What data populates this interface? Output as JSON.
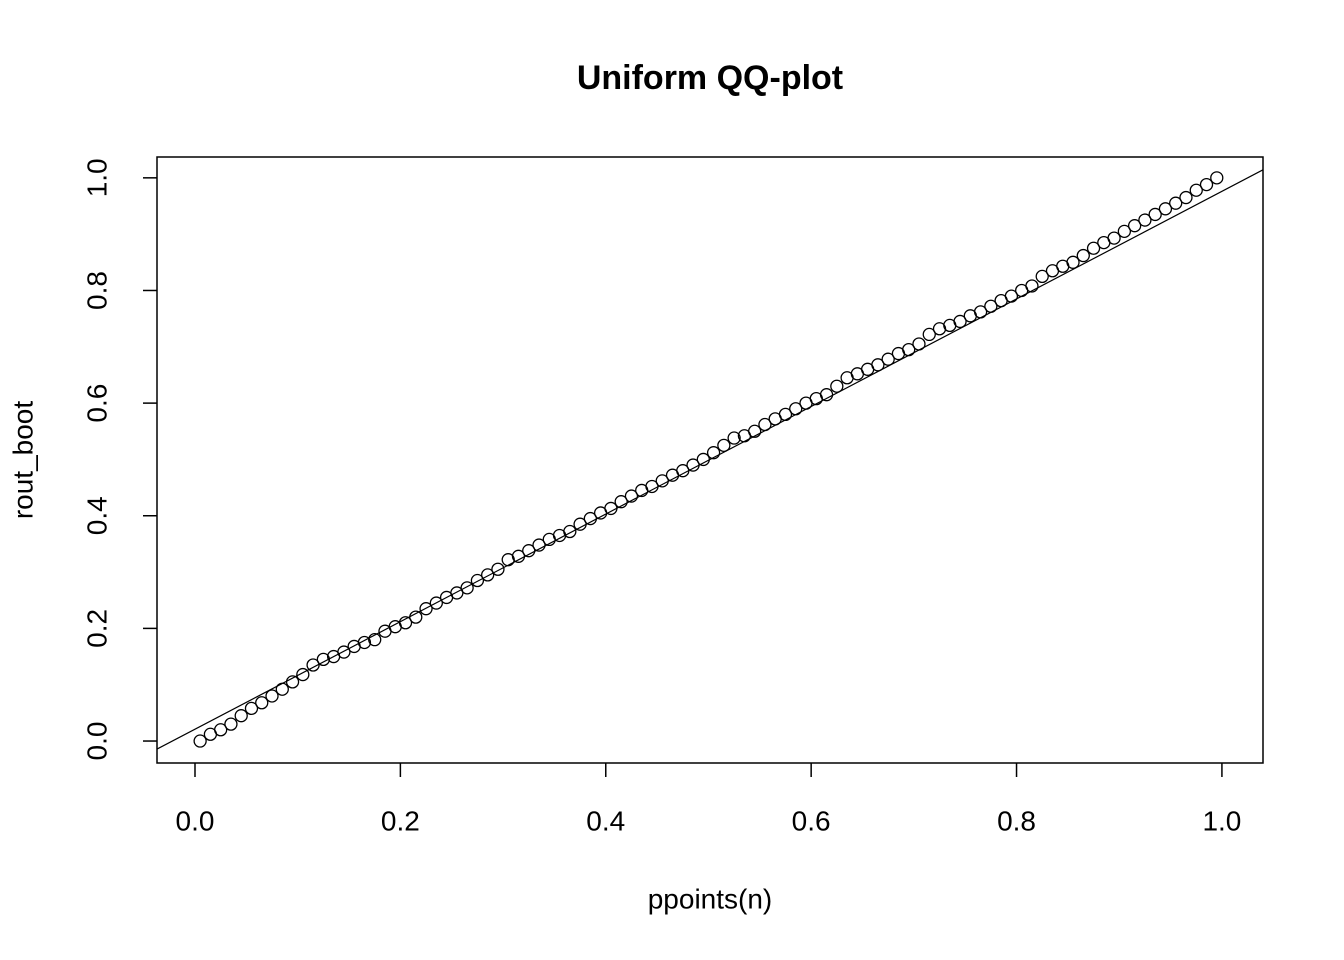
{
  "chart_data": {
    "type": "scatter",
    "title": "Uniform QQ-plot",
    "x_label": "ppoints(n)",
    "y_label": "rout_boot",
    "x": [
      0.005,
      0.015,
      0.025,
      0.035,
      0.045,
      0.055,
      0.065,
      0.075,
      0.085,
      0.095,
      0.105,
      0.115,
      0.125,
      0.135,
      0.145,
      0.155,
      0.165,
      0.175,
      0.185,
      0.195,
      0.205,
      0.215,
      0.225,
      0.235,
      0.245,
      0.255,
      0.265,
      0.275,
      0.285,
      0.295,
      0.305,
      0.315,
      0.325,
      0.335,
      0.345,
      0.355,
      0.365,
      0.375,
      0.385,
      0.395,
      0.405,
      0.415,
      0.425,
      0.435,
      0.445,
      0.455,
      0.465,
      0.475,
      0.485,
      0.495,
      0.505,
      0.515,
      0.525,
      0.535,
      0.545,
      0.555,
      0.565,
      0.575,
      0.585,
      0.595,
      0.605,
      0.615,
      0.625,
      0.635,
      0.645,
      0.655,
      0.665,
      0.675,
      0.685,
      0.695,
      0.705,
      0.715,
      0.725,
      0.735,
      0.745,
      0.755,
      0.765,
      0.775,
      0.785,
      0.795,
      0.805,
      0.815,
      0.825,
      0.835,
      0.845,
      0.855,
      0.865,
      0.875,
      0.885,
      0.895,
      0.905,
      0.915,
      0.925,
      0.935,
      0.945,
      0.955,
      0.965,
      0.975,
      0.985,
      0.995
    ],
    "values": [
      0.0,
      0.012,
      0.02,
      0.03,
      0.045,
      0.058,
      0.068,
      0.08,
      0.092,
      0.105,
      0.118,
      0.135,
      0.145,
      0.15,
      0.158,
      0.168,
      0.175,
      0.18,
      0.195,
      0.203,
      0.21,
      0.22,
      0.235,
      0.245,
      0.255,
      0.263,
      0.272,
      0.285,
      0.295,
      0.305,
      0.322,
      0.328,
      0.338,
      0.348,
      0.358,
      0.365,
      0.372,
      0.385,
      0.395,
      0.405,
      0.413,
      0.425,
      0.435,
      0.445,
      0.452,
      0.462,
      0.472,
      0.48,
      0.49,
      0.5,
      0.512,
      0.525,
      0.538,
      0.542,
      0.55,
      0.562,
      0.572,
      0.58,
      0.59,
      0.6,
      0.608,
      0.615,
      0.63,
      0.645,
      0.652,
      0.66,
      0.668,
      0.678,
      0.688,
      0.695,
      0.705,
      0.722,
      0.732,
      0.738,
      0.745,
      0.755,
      0.762,
      0.772,
      0.782,
      0.79,
      0.8,
      0.808,
      0.825,
      0.835,
      0.843,
      0.85,
      0.862,
      0.875,
      0.885,
      0.893,
      0.905,
      0.915,
      0.925,
      0.935,
      0.945,
      0.955,
      0.965,
      0.978,
      0.988,
      1.0
    ],
    "color": "#000000",
    "abline": {
      "a": 0.021,
      "b": 0.955
    },
    "xlim": [
      -0.037,
      1.04
    ],
    "ylim": [
      -0.039,
      1.037
    ],
    "xticks": [
      {
        "value": 0,
        "label": "0.0"
      },
      0.2,
      0.4,
      0.6,
      0.8,
      {
        "value": 1,
        "label": "1.0"
      }
    ],
    "yticks": [
      {
        "value": 0,
        "label": "0.0"
      },
      0.2,
      0.4,
      0.6,
      0.8,
      {
        "value": 1,
        "label": "1.0"
      }
    ]
  }
}
